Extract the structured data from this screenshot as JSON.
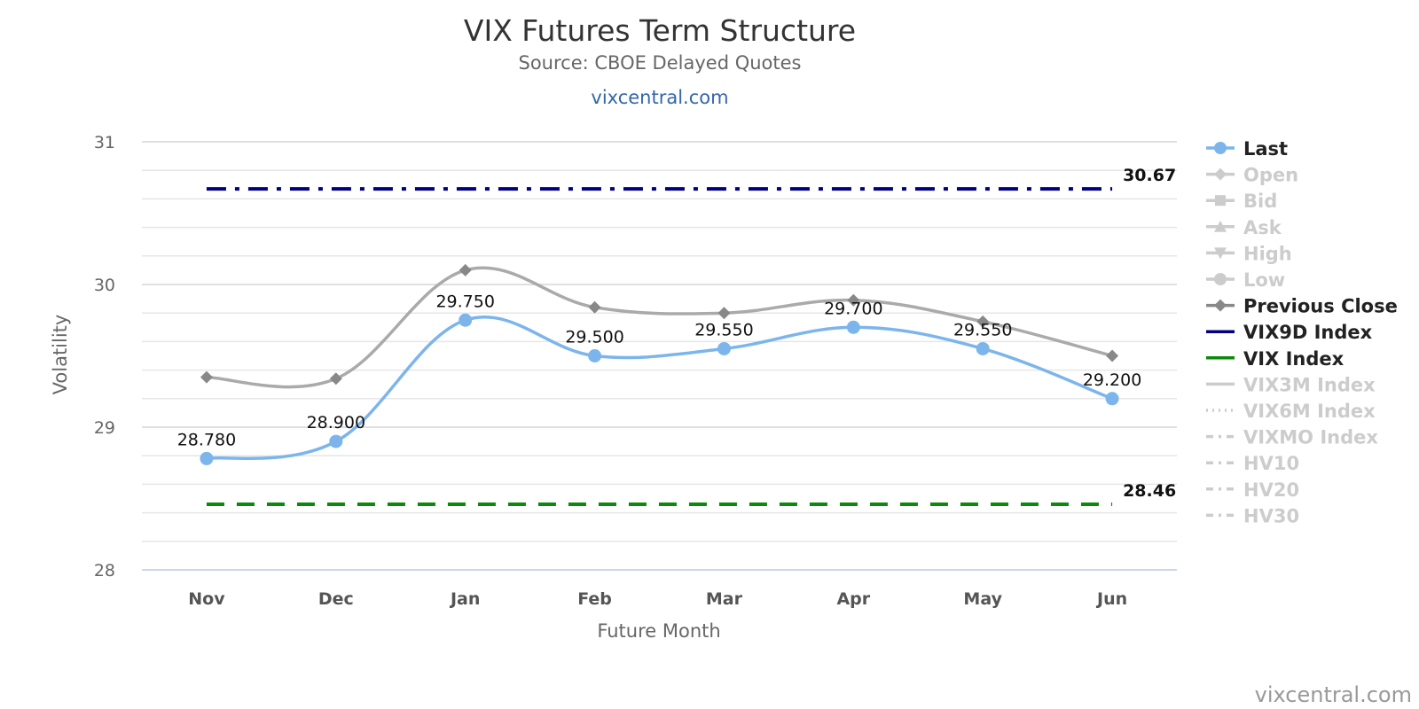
{
  "chart": {
    "title": "VIX Futures Term Structure",
    "subtitle": "Source: CBOE Delayed Quotes",
    "link": "vixcentral.com",
    "credit": "vixcentral.com"
  },
  "chart_data": {
    "type": "line",
    "title": "VIX Futures Term Structure",
    "subtitle": "Source: CBOE Delayed Quotes",
    "xlabel": "Future Month",
    "ylabel": "Volatility",
    "categories": [
      "Nov",
      "Dec",
      "Jan",
      "Feb",
      "Mar",
      "Apr",
      "May",
      "Jun"
    ],
    "ylim": [
      28,
      31
    ],
    "yticks": [
      28,
      29,
      30,
      31
    ],
    "grid": true,
    "legend_position": "right",
    "series": [
      {
        "name": "Last",
        "values": [
          28.78,
          28.9,
          29.75,
          29.5,
          29.55,
          29.7,
          29.55,
          29.2
        ],
        "labels": [
          "28.780",
          "28.900",
          "29.750",
          "29.500",
          "29.550",
          "29.700",
          "29.550",
          "29.200"
        ],
        "color": "#7cb5ec",
        "style": "solid",
        "marker": "circle",
        "visible": true
      },
      {
        "name": "Previous Close",
        "values": [
          29.35,
          29.34,
          30.1,
          29.84,
          29.8,
          29.89,
          29.74,
          29.5
        ],
        "color": "#aaaaaa",
        "marker_color": "#888888",
        "style": "solid",
        "marker": "diamond",
        "visible": true
      },
      {
        "name": "VIX9D Index",
        "level": 30.67,
        "label": "30.67",
        "color": "#000080",
        "style": "dashdot",
        "visible": true
      },
      {
        "name": "VIX Index",
        "level": 28.46,
        "label": "28.46",
        "color": "#0a8a0a",
        "style": "dash",
        "visible": true
      }
    ],
    "legend": [
      {
        "name": "Last",
        "color": "#7cb5ec",
        "symbol": "circle",
        "style": "solid",
        "active": true
      },
      {
        "name": "Open",
        "color": "#cccccc",
        "symbol": "diamond",
        "style": "solid",
        "active": false
      },
      {
        "name": "Bid",
        "color": "#cccccc",
        "symbol": "square",
        "style": "solid",
        "active": false
      },
      {
        "name": "Ask",
        "color": "#cccccc",
        "symbol": "triangle",
        "style": "solid",
        "active": false
      },
      {
        "name": "High",
        "color": "#cccccc",
        "symbol": "triangle-down",
        "style": "solid",
        "active": false
      },
      {
        "name": "Low",
        "color": "#cccccc",
        "symbol": "circle",
        "style": "solid",
        "active": false
      },
      {
        "name": "Previous Close",
        "color": "#888888",
        "symbol": "diamond",
        "style": "solid",
        "active": true
      },
      {
        "name": "VIX9D Index",
        "color": "#000080",
        "symbol": "none",
        "style": "solid",
        "active": true
      },
      {
        "name": "VIX Index",
        "color": "#0a8a0a",
        "symbol": "none",
        "style": "solid",
        "active": true
      },
      {
        "name": "VIX3M Index",
        "color": "#cccccc",
        "symbol": "none",
        "style": "solid",
        "active": false
      },
      {
        "name": "VIX6M Index",
        "color": "#cccccc",
        "symbol": "none",
        "style": "dot",
        "active": false
      },
      {
        "name": "VIXMO Index",
        "color": "#cccccc",
        "symbol": "none",
        "style": "dashdot",
        "active": false
      },
      {
        "name": "HV10",
        "color": "#cccccc",
        "symbol": "none",
        "style": "dashdot",
        "active": false
      },
      {
        "name": "HV20",
        "color": "#cccccc",
        "symbol": "none",
        "style": "dashdot",
        "active": false
      },
      {
        "name": "HV30",
        "color": "#cccccc",
        "symbol": "none",
        "style": "dashdot",
        "active": false
      }
    ]
  }
}
